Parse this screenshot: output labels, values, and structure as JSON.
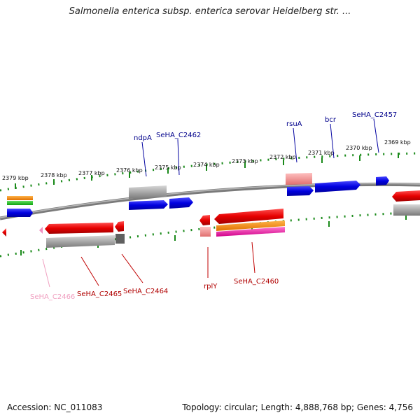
{
  "title": "Salmonella enterica subsp. enterica serovar Heidelberg str. ...",
  "colors": {
    "forward_gene": "#1f1fe0",
    "reverse_gene": "#e60000",
    "pseudo_gray": "#a8a8a8",
    "backbone": "#7a7a7a",
    "tick_green": "#1a8a1a",
    "label_blue": "#00008b",
    "label_red": "#b00000",
    "label_pink": "#f0a0c0"
  },
  "scale_labels": [
    "2379 kbp",
    "2378 kbp",
    "2377 kbp",
    "2376 kbp",
    "2375 kbp",
    "2374 kbp",
    "2373 kbp",
    "2372 kbp",
    "2371 kbp",
    "2370 kbp",
    "2369 kbp"
  ],
  "gene_labels_top": [
    "ndpA",
    "SeHA_C2462",
    "rsuA",
    "bcr",
    "SeHA_C2457"
  ],
  "gene_labels_bottom": [
    "SeHA_C2466",
    "SeHA_C2465",
    "SeHA_C2464",
    "rplY",
    "SeHA_C2460"
  ],
  "footer": {
    "accession": "Accession: NC_011083",
    "stats": "Topology: circular; Length: 4,888,768 bp; Genes: 4,756"
  }
}
